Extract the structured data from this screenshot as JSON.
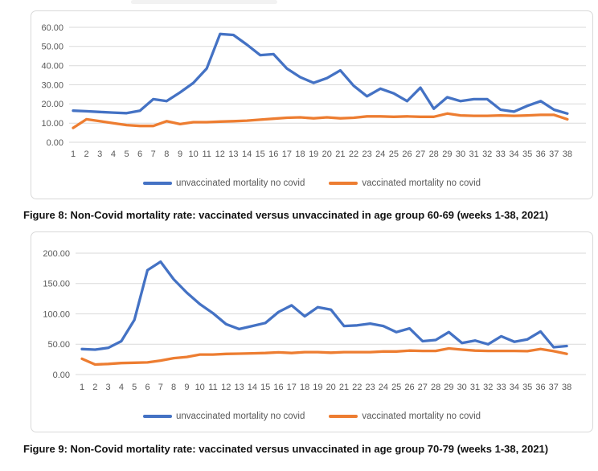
{
  "colors": {
    "background": "#FFFFFF",
    "unvaccinated_line": "#4472C4",
    "vaccinated_line": "#ED7D31",
    "gridline": "#DADADA",
    "axis_text": "#595959",
    "panel_border": "#D9D9D9",
    "caption_text": "#121212"
  },
  "chart_data": [
    {
      "id": "fig8",
      "type": "line",
      "caption": "Figure 8: Non-Covid mortality rate: vaccinated versus unvaccinated in age group 60-69 (weeks 1-38, 2021)",
      "title": "",
      "xlabel": "",
      "ylabel": "",
      "grid": true,
      "legend_position": "bottom",
      "x": [
        1,
        2,
        3,
        4,
        5,
        6,
        7,
        8,
        9,
        10,
        11,
        12,
        13,
        14,
        15,
        16,
        17,
        18,
        19,
        20,
        21,
        22,
        23,
        24,
        25,
        26,
        27,
        28,
        29,
        30,
        31,
        32,
        33,
        34,
        35,
        36,
        37,
        38
      ],
      "ylim": [
        0,
        60
      ],
      "yticks": [
        0,
        10,
        20,
        30,
        40,
        50,
        60
      ],
      "ytick_labels": [
        "0.00",
        "10.00",
        "20.00",
        "30.00",
        "40.00",
        "50.00",
        "60.00"
      ],
      "series": [
        {
          "key": "unvaccinated",
          "name": "unvaccinated mortality no covid",
          "color": "#4472C4",
          "values": [
            16.5,
            16.2,
            15.8,
            15.5,
            15.2,
            16.5,
            22.5,
            21.5,
            26,
            31,
            38.5,
            56.5,
            56,
            51,
            45.5,
            46,
            38.5,
            34,
            31,
            33.5,
            37.5,
            29.5,
            24,
            28,
            25.5,
            21.5,
            28.5,
            17.5,
            23.5,
            21.5,
            22.5,
            22.5,
            17,
            16,
            19,
            21.5,
            17,
            15
          ]
        },
        {
          "key": "vaccinated",
          "name": "vaccinated mortality no covid",
          "color": "#ED7D31",
          "values": [
            7.5,
            12,
            11,
            10,
            9,
            8.5,
            8.5,
            11,
            9.5,
            10.5,
            10.5,
            10.8,
            11,
            11.3,
            11.8,
            12.3,
            12.8,
            13,
            12.5,
            13,
            12.5,
            12.8,
            13.5,
            13.5,
            13.3,
            13.5,
            13.3,
            13.3,
            15,
            14,
            13.8,
            13.8,
            14,
            13.8,
            14,
            14.3,
            14.3,
            12
          ]
        }
      ]
    },
    {
      "id": "fig9",
      "type": "line",
      "caption": "Figure 9: Non-Covid mortality rate: vaccinated versus unvaccinated in age group 70-79 (weeks 1-38, 2021)",
      "title": "",
      "xlabel": "",
      "ylabel": "",
      "grid": true,
      "legend_position": "bottom",
      "x": [
        1,
        2,
        3,
        4,
        5,
        6,
        7,
        8,
        9,
        10,
        11,
        12,
        13,
        14,
        15,
        16,
        17,
        18,
        19,
        20,
        21,
        22,
        23,
        24,
        25,
        26,
        27,
        28,
        29,
        30,
        31,
        32,
        33,
        34,
        35,
        36,
        37,
        38
      ],
      "ylim": [
        0,
        200
      ],
      "yticks": [
        0,
        50,
        100,
        150,
        200
      ],
      "ytick_labels": [
        "0.00",
        "50.00",
        "100.00",
        "150.00",
        "200.00"
      ],
      "series": [
        {
          "key": "unvaccinated",
          "name": "unvaccinated mortality no covid",
          "color": "#4472C4",
          "values": [
            42,
            41,
            44,
            55,
            90,
            172,
            186,
            157,
            135,
            116,
            101,
            83,
            75,
            80,
            85,
            103,
            114,
            96,
            111,
            107,
            80,
            81,
            84,
            80,
            70,
            76,
            55,
            57,
            70,
            52,
            56,
            50,
            63,
            54,
            58,
            71,
            45,
            47
          ]
        },
        {
          "key": "vaccinated",
          "name": "vaccinated mortality no covid",
          "color": "#ED7D31",
          "values": [
            26,
            16.5,
            17.5,
            19,
            19.5,
            20,
            23,
            27,
            29,
            33,
            33,
            34,
            34.5,
            35,
            35.5,
            36.5,
            35.5,
            37,
            37,
            36,
            37,
            37,
            37,
            38,
            38,
            39.5,
            39,
            39,
            43,
            41,
            39.5,
            39,
            39,
            39,
            38.5,
            42,
            38.5,
            34
          ]
        }
      ]
    }
  ]
}
